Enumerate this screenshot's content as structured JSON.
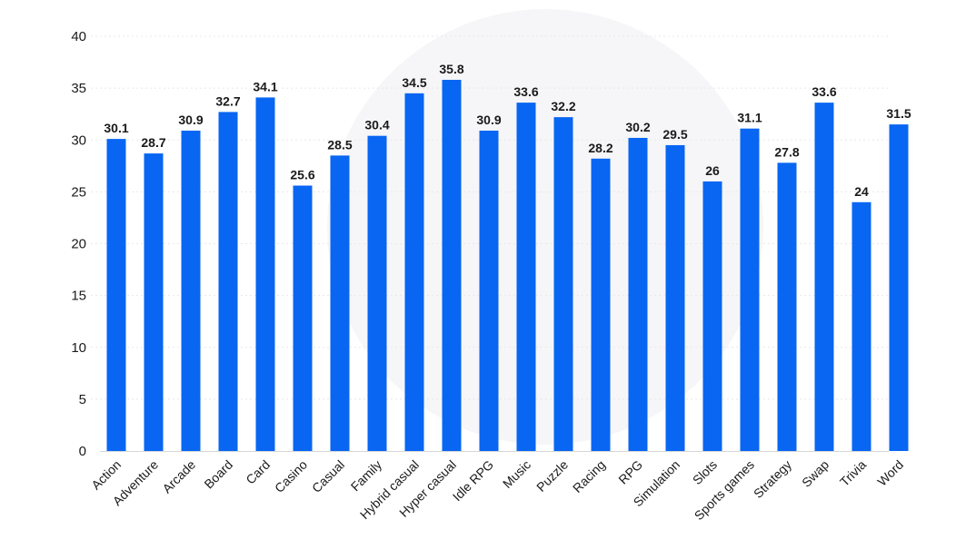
{
  "colors": {
    "bar": "#0866f2",
    "text": "#1a1a1a",
    "grid": "#e8e8e8"
  },
  "chart_data": {
    "type": "bar",
    "title": "",
    "xlabel": "",
    "ylabel": "",
    "ylim": [
      0,
      40
    ],
    "yticks": [
      0,
      5,
      10,
      15,
      20,
      25,
      30,
      35,
      40
    ],
    "grid": true,
    "legend": "none",
    "categories": [
      "Action",
      "Adventure",
      "Arcade",
      "Board",
      "Card",
      "Casino",
      "Casual",
      "Family",
      "Hybrid casual",
      "Hyper casual",
      "Idle RPG",
      "Music",
      "Puzzle",
      "Racing",
      "RPG",
      "Simulation",
      "Slots",
      "Sports games",
      "Strategy",
      "Swap",
      "Trivia",
      "Word"
    ],
    "values": [
      30.1,
      28.7,
      30.9,
      32.7,
      34.1,
      25.6,
      28.5,
      30.4,
      34.5,
      35.8,
      30.9,
      33.6,
      32.2,
      28.2,
      30.2,
      29.5,
      26,
      31.1,
      27.8,
      33.6,
      24,
      31.5
    ]
  }
}
